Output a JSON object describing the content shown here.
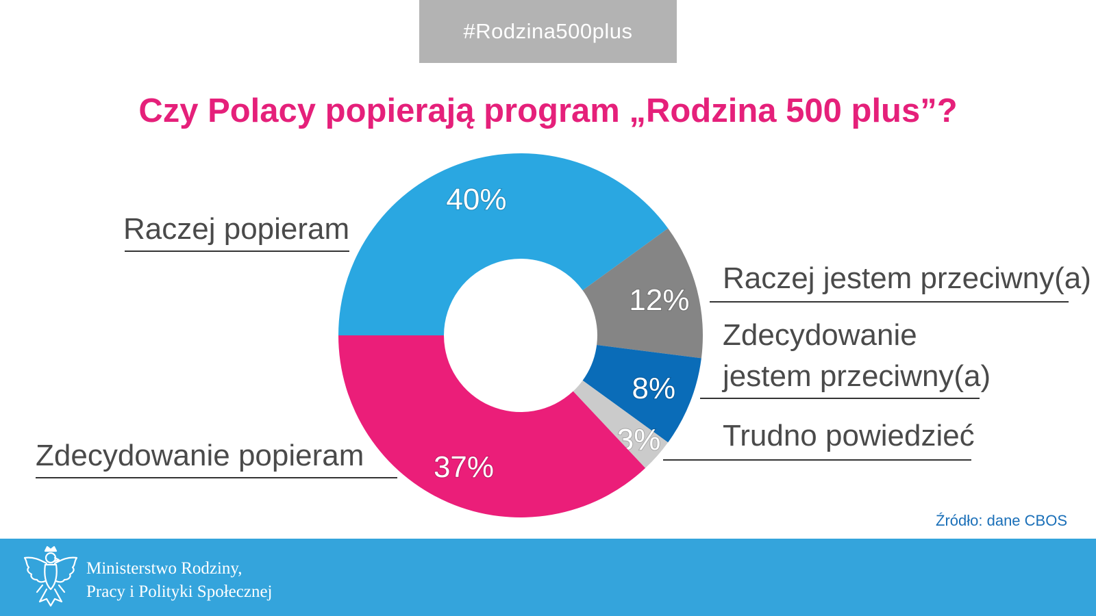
{
  "header": {
    "hashtag": "#Rodzina500plus"
  },
  "chart_data": {
    "type": "pie",
    "title": "Czy Polacy popierają program „Rodzina 500 plus”?",
    "slices": [
      {
        "label": "Raczej popieram",
        "value": 40,
        "value_label": "40%",
        "color": "#2aa7e1"
      },
      {
        "label": "Raczej jestem przeciwny(a)",
        "value": 12,
        "value_label": "12%",
        "color": "#858585"
      },
      {
        "label": "Zdecydowanie jestem przeciwny(a)",
        "value": 8,
        "value_label": "8%",
        "color": "#0a6cb8"
      },
      {
        "label": "Trudno powiedzieć",
        "value": 3,
        "value_label": "3%",
        "color": "#cbcbcb"
      },
      {
        "label": "Zdecydowanie popieram",
        "value": 37,
        "value_label": "37%",
        "color": "#eb1e79"
      }
    ]
  },
  "labels": {
    "raczej_popieram": "Raczej popieram",
    "raczej_przeciwny": "Raczej jestem przeciwny(a)",
    "zdecydowanie_przeciwny_line1": "Zdecydowanie",
    "zdecydowanie_przeciwny_line2": "jestem przeciwny(a)",
    "trudno": "Trudno powiedzieć",
    "zdecydowanie_popieram": "Zdecydowanie popieram"
  },
  "source": "Źródło: dane CBOS",
  "footer": {
    "line1": "Ministerstwo Rodziny,",
    "line2": "Pracy i Polityki Społecznej"
  }
}
